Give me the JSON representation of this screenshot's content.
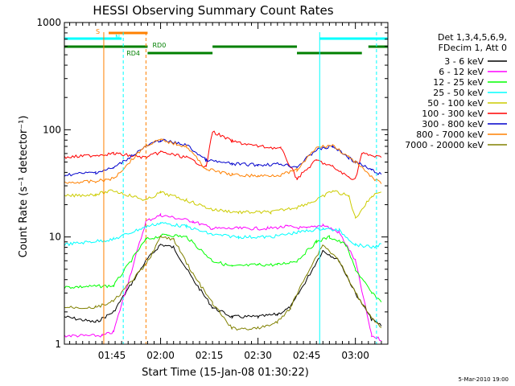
{
  "chart_data": {
    "type": "line",
    "title": "HESSI Observing Summary Count Rates",
    "xlabel": "Start Time (15-Jan-08 01:30:22)",
    "ylabel": "Count Rate (s⁻¹ detector⁻¹)",
    "y_scale": "log",
    "ylim": [
      1,
      1000
    ],
    "xlim": [
      "01:30:22",
      "03:10:00"
    ],
    "x_ticks": [
      "01:45",
      "02:00",
      "02:15",
      "02:30",
      "02:45",
      "03:00"
    ],
    "y_ticks": [
      "1",
      "10",
      "100",
      "1000"
    ],
    "legend_header": [
      "Det 1,3,4,5,6,9,",
      "FDecim 1, Att 0"
    ],
    "legend_position": "right",
    "timestamp": "5-Mar-2010 19:00",
    "flags": [
      {
        "label": "S",
        "color": "#ff8000",
        "segments": [
          [
            "01:44:00",
            "01:56:00"
          ]
        ]
      },
      {
        "label": "N",
        "color": "#00ffff",
        "segments": [
          [
            "01:30:22",
            "01:48:00"
          ],
          [
            "02:49:00",
            "03:10:00"
          ]
        ]
      },
      {
        "label": "RD0",
        "color": "#008000",
        "segments": [
          [
            "01:30:22",
            "01:56:00"
          ],
          [
            "02:16:00",
            "02:42:00"
          ],
          [
            "03:04:00",
            "03:10:00"
          ]
        ]
      },
      {
        "label": "RD4",
        "color": "#008000",
        "segments": [
          [
            "01:56:00",
            "02:16:00"
          ],
          [
            "02:42:00",
            "03:02:00"
          ]
        ]
      }
    ],
    "vlines": [
      {
        "t": "01:30:22",
        "color": "#00ffff",
        "dashed": false
      },
      {
        "t": "01:42:30",
        "color": "#ff8000",
        "dashed": false
      },
      {
        "t": "01:48:30",
        "color": "#00ffff",
        "dashed": true
      },
      {
        "t": "01:55:30",
        "color": "#ff8000",
        "dashed": true
      },
      {
        "t": "02:49:00",
        "color": "#00ffff",
        "dashed": false
      },
      {
        "t": "03:06:30",
        "color": "#00ffff",
        "dashed": true
      }
    ],
    "series": [
      {
        "name": "3 - 6 keV",
        "color": "#000000",
        "points": [
          [
            "01:30:22",
            1.8
          ],
          [
            "01:40:00",
            1.6
          ],
          [
            "01:45:30",
            2.0
          ],
          [
            "01:55:30",
            6.0
          ],
          [
            "02:00:00",
            8.5
          ],
          [
            "02:04:00",
            8.0
          ],
          [
            "02:10:00",
            4.0
          ],
          [
            "02:16:00",
            2.2
          ],
          [
            "02:22:00",
            1.8
          ],
          [
            "02:30:00",
            1.8
          ],
          [
            "02:36:00",
            1.9
          ],
          [
            "02:40:00",
            2.2
          ],
          [
            "02:45:00",
            4.0
          ],
          [
            "02:50:00",
            7.5
          ],
          [
            "02:55:00",
            6.0
          ],
          [
            "03:00:00",
            3.0
          ],
          [
            "03:05:00",
            1.7
          ],
          [
            "03:08:00",
            1.5
          ]
        ]
      },
      {
        "name": "6 - 12 keV",
        "color": "#ff00ff",
        "points": [
          [
            "01:30:22",
            1.2
          ],
          [
            "01:42:00",
            1.2
          ],
          [
            "01:45:30",
            1.3
          ],
          [
            "01:55:30",
            14
          ],
          [
            "02:00:00",
            16
          ],
          [
            "02:10:00",
            14
          ],
          [
            "02:16:00",
            12
          ],
          [
            "02:24:00",
            12
          ],
          [
            "02:33:00",
            12
          ],
          [
            "02:39:00",
            12.5
          ],
          [
            "02:45:00",
            12
          ],
          [
            "02:50:00",
            13
          ],
          [
            "02:55:00",
            11
          ],
          [
            "03:00:00",
            6
          ],
          [
            "03:05:00",
            1.2
          ],
          [
            "03:08:00",
            1.1
          ]
        ]
      },
      {
        "name": "12 - 25 keV",
        "color": "#00ff00",
        "points": [
          [
            "01:30:22",
            3.4
          ],
          [
            "01:45:30",
            3.5
          ],
          [
            "01:55:30",
            9.5
          ],
          [
            "02:02:00",
            10.5
          ],
          [
            "02:08:00",
            10.0
          ],
          [
            "02:16:00",
            6.0
          ],
          [
            "02:22:00",
            5.3
          ],
          [
            "02:30:00",
            5.5
          ],
          [
            "02:36:00",
            5.5
          ],
          [
            "02:42:00",
            6.0
          ],
          [
            "02:48:00",
            9.0
          ],
          [
            "02:52:00",
            10.0
          ],
          [
            "02:57:00",
            8.5
          ],
          [
            "03:00:00",
            5.0
          ],
          [
            "03:05:00",
            3.0
          ],
          [
            "03:08:00",
            2.5
          ]
        ]
      },
      {
        "name": "25 - 50 keV",
        "color": "#00ffff",
        "points": [
          [
            "01:30:22",
            8.5
          ],
          [
            "01:45:30",
            9.5
          ],
          [
            "01:55:30",
            12.5
          ],
          [
            "02:00:00",
            13.5
          ],
          [
            "02:08:00",
            12.5
          ],
          [
            "02:16:00",
            10.5
          ],
          [
            "02:24:00",
            10.0
          ],
          [
            "02:34:00",
            10.0
          ],
          [
            "02:42:00",
            11.0
          ],
          [
            "02:50:00",
            12.0
          ],
          [
            "02:55:00",
            11.5
          ],
          [
            "03:00:00",
            8.5
          ],
          [
            "03:05:00",
            8.0
          ],
          [
            "03:08:00",
            8.5
          ]
        ]
      },
      {
        "name": "50 - 100 keV",
        "color": "#cccc00",
        "points": [
          [
            "01:30:22",
            24
          ],
          [
            "01:40:00",
            25
          ],
          [
            "01:45:30",
            27
          ],
          [
            "01:55:30",
            22
          ],
          [
            "02:00:00",
            26
          ],
          [
            "02:08:00",
            22
          ],
          [
            "02:16:00",
            18
          ],
          [
            "02:24:00",
            17
          ],
          [
            "02:34:00",
            17
          ],
          [
            "02:42:00",
            19
          ],
          [
            "02:48:00",
            22
          ],
          [
            "02:53:00",
            27
          ],
          [
            "02:58:00",
            24
          ],
          [
            "03:00:00",
            15
          ],
          [
            "03:05:00",
            24
          ],
          [
            "03:08:00",
            27
          ]
        ]
      },
      {
        "name": "100 - 300 keV",
        "color": "#ff0000",
        "points": [
          [
            "01:30:22",
            55
          ],
          [
            "01:40:00",
            58
          ],
          [
            "01:45:30",
            60
          ],
          [
            "01:55:30",
            55
          ],
          [
            "02:00:00",
            62
          ],
          [
            "02:08:00",
            55
          ],
          [
            "02:14:00",
            45
          ],
          [
            "02:16:00",
            96
          ],
          [
            "02:22:00",
            78
          ],
          [
            "02:30:00",
            70
          ],
          [
            "02:37:00",
            67
          ],
          [
            "02:42:00",
            35
          ],
          [
            "02:48:00",
            52
          ],
          [
            "02:53:00",
            45
          ],
          [
            "02:58:00",
            36
          ],
          [
            "03:00:00",
            35
          ],
          [
            "03:02:00",
            60
          ],
          [
            "03:08:00",
            55
          ]
        ]
      },
      {
        "name": "300 - 800 keV",
        "color": "#0000cc",
        "points": [
          [
            "01:30:22",
            38
          ],
          [
            "01:40:00",
            40
          ],
          [
            "01:45:30",
            44
          ],
          [
            "01:55:30",
            70
          ],
          [
            "02:00:00",
            80
          ],
          [
            "02:08:00",
            72
          ],
          [
            "02:14:00",
            52
          ],
          [
            "02:22:00",
            48
          ],
          [
            "02:30:00",
            47
          ],
          [
            "02:37:00",
            48
          ],
          [
            "02:42:00",
            45
          ],
          [
            "02:48:00",
            65
          ],
          [
            "02:53:00",
            70
          ],
          [
            "02:58:00",
            55
          ],
          [
            "03:00:00",
            50
          ],
          [
            "03:05:00",
            42
          ],
          [
            "03:08:00",
            38
          ]
        ]
      },
      {
        "name": "800 - 7000 keV",
        "color": "#ff8000",
        "points": [
          [
            "01:30:22",
            32
          ],
          [
            "01:40:00",
            33
          ],
          [
            "01:45:30",
            35
          ],
          [
            "01:55:30",
            72
          ],
          [
            "02:00:00",
            80
          ],
          [
            "02:08:00",
            70
          ],
          [
            "02:14:00",
            43
          ],
          [
            "02:22:00",
            38
          ],
          [
            "02:30:00",
            37
          ],
          [
            "02:37:00",
            38
          ],
          [
            "02:42:00",
            42
          ],
          [
            "02:48:00",
            68
          ],
          [
            "02:53:00",
            72
          ],
          [
            "02:58:00",
            55
          ],
          [
            "03:00:00",
            50
          ],
          [
            "03:05:00",
            36
          ],
          [
            "03:08:00",
            32
          ]
        ]
      },
      {
        "name": "7000 - 20000 keV",
        "color": "#808000",
        "points": [
          [
            "01:30:22",
            2.2
          ],
          [
            "01:40:00",
            2.2
          ],
          [
            "01:45:30",
            2.5
          ],
          [
            "01:55:30",
            5.5
          ],
          [
            "02:00:00",
            10
          ],
          [
            "02:04:00",
            9.5
          ],
          [
            "02:10:00",
            4.5
          ],
          [
            "02:16:00",
            2.4
          ],
          [
            "02:22:00",
            1.4
          ],
          [
            "02:30:00",
            1.4
          ],
          [
            "02:36:00",
            1.6
          ],
          [
            "02:40:00",
            2.2
          ],
          [
            "02:45:00",
            4.5
          ],
          [
            "02:50:00",
            8.5
          ],
          [
            "02:55:00",
            6.0
          ],
          [
            "03:00:00",
            3.0
          ],
          [
            "03:05:00",
            1.8
          ],
          [
            "03:08:00",
            1.4
          ]
        ]
      }
    ]
  }
}
